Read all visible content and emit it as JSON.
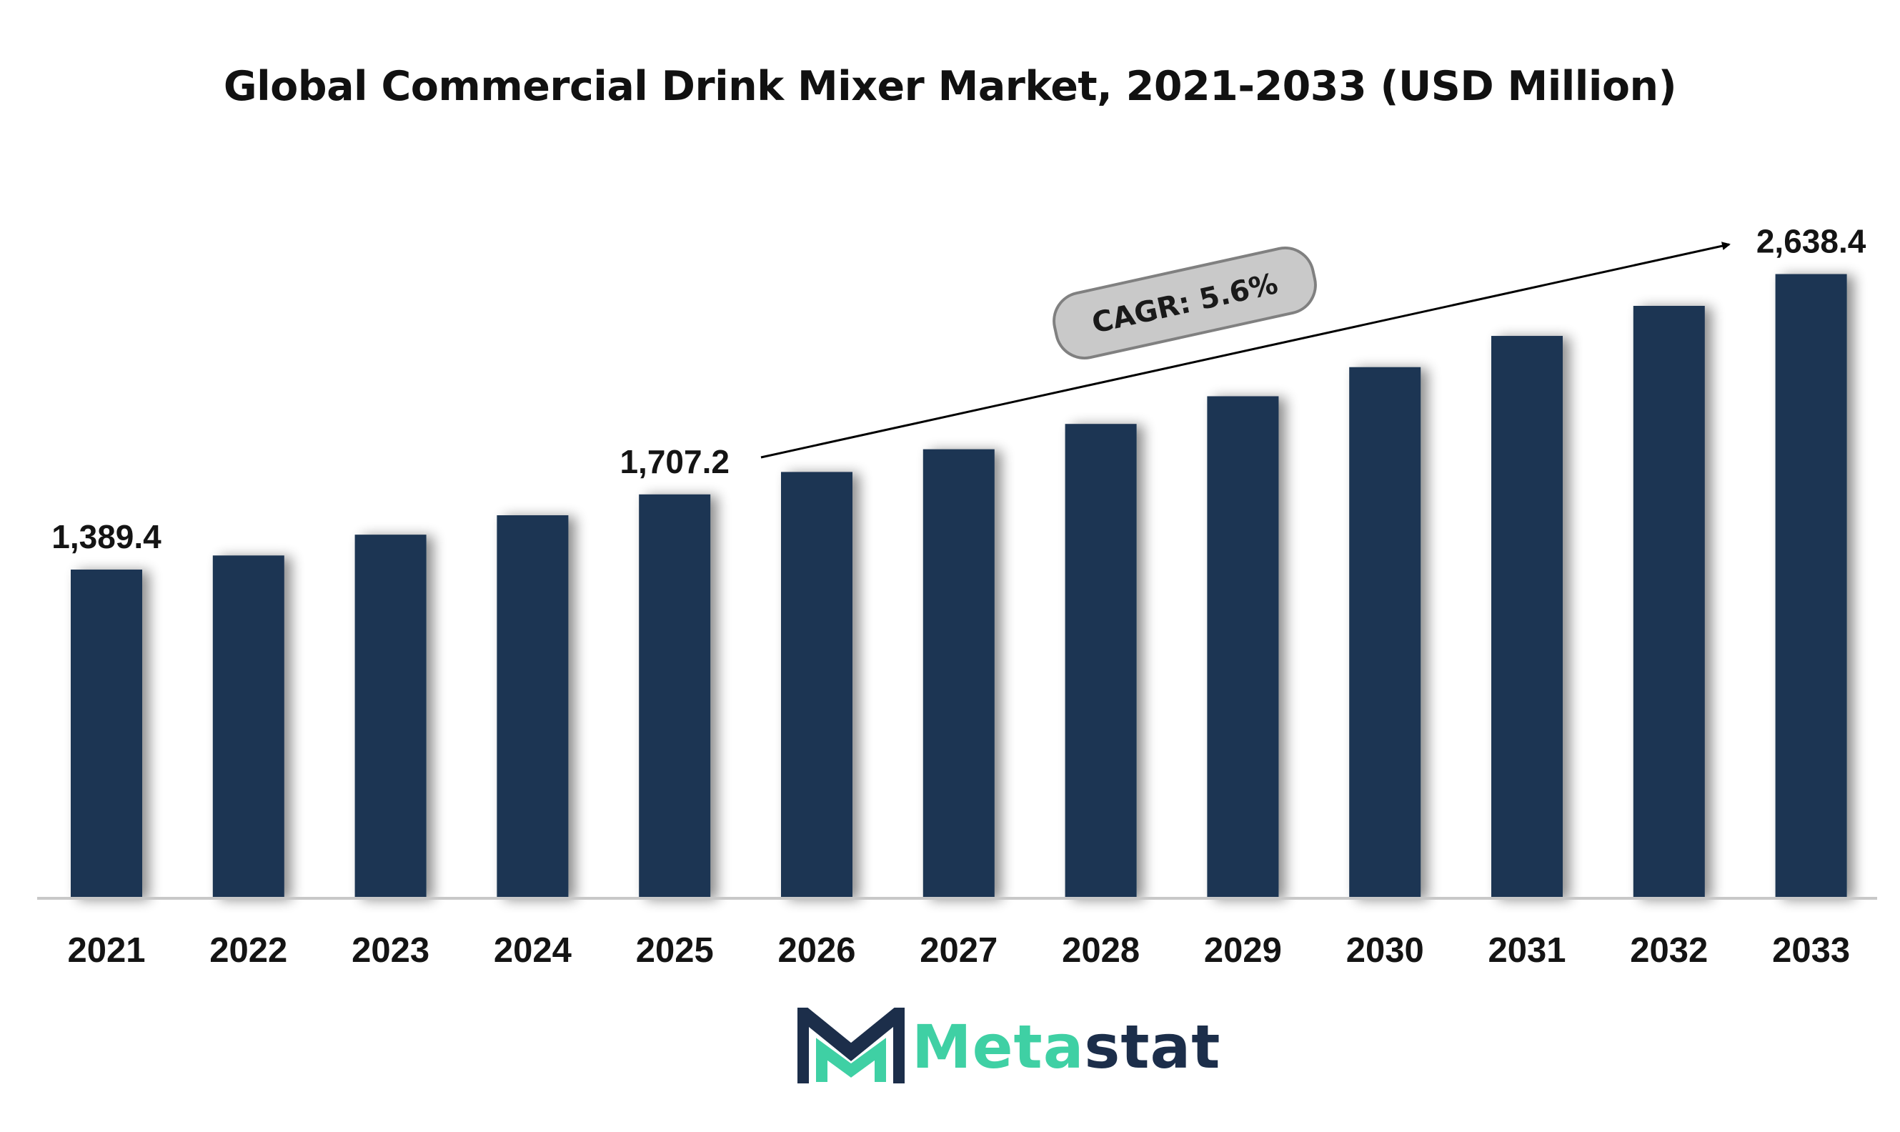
{
  "chart_data": {
    "type": "bar",
    "title": "Global Commercial Drink Mixer Market, 2021-2033 (USD Million)",
    "categories": [
      "2021",
      "2022",
      "2023",
      "2024",
      "2025",
      "2026",
      "2027",
      "2028",
      "2029",
      "2030",
      "2031",
      "2032",
      "2033"
    ],
    "values": [
      1389.4,
      1449,
      1537,
      1619,
      1707.2,
      1802,
      1898,
      2005,
      2122,
      2245,
      2377,
      2504,
      2638.4
    ],
    "data_labels": [
      {
        "category": "2021",
        "text": "1,389.4"
      },
      {
        "category": "2025",
        "text": "1,707.2"
      },
      {
        "category": "2033",
        "text": "2,638.4"
      }
    ],
    "annotation": {
      "text": "CAGR: 5.6%",
      "from": "2025",
      "to": "2033"
    },
    "ylim": [
      0,
      2800
    ],
    "bar_color": "#1c3552",
    "grid": false,
    "legend": "none"
  },
  "branding": {
    "logo_text_a": "Meta",
    "logo_text_b": "stat",
    "accent_color": "#3fd0a4",
    "brand_color": "#1c2e4a",
    "icon": "metastat-m-logo-icon"
  }
}
